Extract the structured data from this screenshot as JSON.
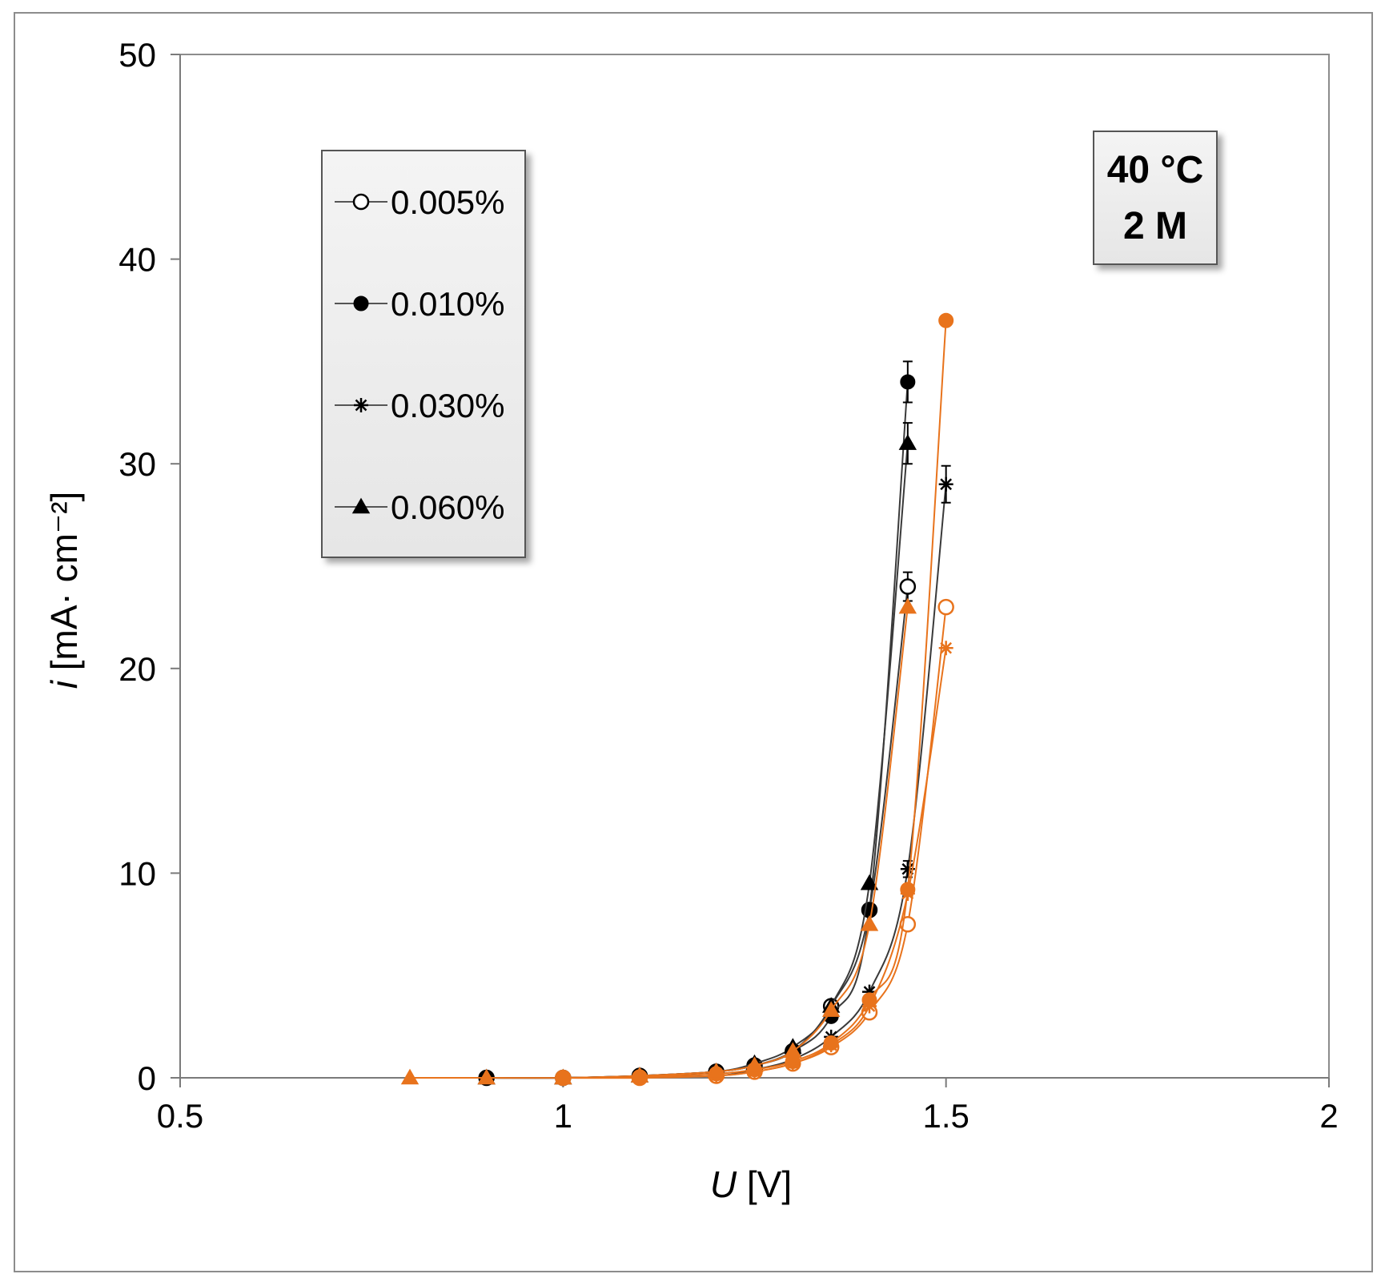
{
  "chart_data": {
    "type": "scatter",
    "xlabel": {
      "var": "U",
      "unit": " [V]"
    },
    "ylabel": {
      "var": "i",
      "unit": " [mA· cm⁻²]"
    },
    "xlim": [
      0.5,
      2
    ],
    "ylim": [
      0,
      50
    ],
    "xticks": [
      "0.5",
      "1",
      "1.5",
      "2"
    ],
    "yticks": [
      "0",
      "10",
      "20",
      "30",
      "40",
      "50"
    ],
    "grid": false,
    "legend_position": "top-left",
    "annotation": [
      "40 °C",
      "2 M"
    ],
    "colors": {
      "black_set": "#000000",
      "orange_set": "#E8731C"
    },
    "legend": [
      {
        "label": "0.005%",
        "marker": "open-circle"
      },
      {
        "label": "0.010%",
        "marker": "filled-circle"
      },
      {
        "label": "0.030%",
        "marker": "star"
      },
      {
        "label": "0.060%",
        "marker": "filled-triangle"
      }
    ],
    "series": [
      {
        "set": "black",
        "marker": "open-circle",
        "x": [
          0.9,
          1.0,
          1.1,
          1.2,
          1.25,
          1.3,
          1.35,
          1.4,
          1.45
        ],
        "y": [
          0,
          0,
          0.1,
          0.3,
          0.6,
          1.3,
          3.5,
          8.2,
          24.0
        ],
        "err": [
          0,
          0,
          0,
          0,
          0,
          0,
          0,
          0,
          0.7
        ]
      },
      {
        "set": "black",
        "marker": "filled-circle",
        "x": [
          0.9,
          1.0,
          1.1,
          1.2,
          1.25,
          1.3,
          1.35,
          1.4,
          1.45
        ],
        "y": [
          0,
          0,
          0.1,
          0.3,
          0.6,
          1.3,
          3.0,
          8.2,
          34.0
        ],
        "err": [
          0,
          0,
          0,
          0,
          0,
          0,
          0,
          0,
          1.0
        ]
      },
      {
        "set": "black",
        "marker": "star",
        "x": [
          0.9,
          1.0,
          1.1,
          1.2,
          1.25,
          1.3,
          1.35,
          1.4,
          1.45,
          1.5
        ],
        "y": [
          0,
          0,
          0.05,
          0.1,
          0.4,
          0.9,
          2.0,
          4.2,
          10.2,
          29.0
        ],
        "err": [
          0,
          0,
          0,
          0,
          0,
          0,
          0,
          0,
          0.4,
          0.9
        ]
      },
      {
        "set": "black",
        "marker": "filled-triangle",
        "x": [
          0.9,
          1.0,
          1.1,
          1.2,
          1.25,
          1.3,
          1.35,
          1.4,
          1.45
        ],
        "y": [
          0,
          0,
          0.1,
          0.3,
          0.7,
          1.5,
          3.5,
          9.5,
          31.0
        ],
        "err": [
          0,
          0,
          0,
          0,
          0,
          0,
          0,
          0,
          1.0
        ]
      },
      {
        "set": "orange",
        "marker": "open-circle",
        "x": [
          1.0,
          1.1,
          1.2,
          1.25,
          1.3,
          1.35,
          1.4,
          1.45,
          1.5
        ],
        "y": [
          0,
          0,
          0.1,
          0.3,
          0.7,
          1.5,
          3.2,
          7.5,
          23.0
        ],
        "err": [
          0,
          0,
          0,
          0,
          0,
          0,
          0,
          0,
          0
        ]
      },
      {
        "set": "orange",
        "marker": "filled-circle",
        "x": [
          1.0,
          1.1,
          1.2,
          1.25,
          1.3,
          1.35,
          1.4,
          1.45,
          1.5
        ],
        "y": [
          0,
          0.05,
          0.2,
          0.4,
          0.8,
          1.7,
          3.8,
          9.2,
          37.0
        ],
        "err": [
          0,
          0,
          0,
          0,
          0,
          0,
          0,
          0,
          0
        ]
      },
      {
        "set": "orange",
        "marker": "star",
        "x": [
          1.0,
          1.1,
          1.2,
          1.25,
          1.3,
          1.35,
          1.4,
          1.45,
          1.5
        ],
        "y": [
          0,
          0,
          0.1,
          0.3,
          0.7,
          1.6,
          3.5,
          9.0,
          21.0
        ],
        "err": [
          0,
          0,
          0,
          0,
          0,
          0,
          0,
          0,
          0
        ]
      },
      {
        "set": "orange",
        "marker": "filled-triangle",
        "x": [
          0.8,
          0.9,
          1.0,
          1.1,
          1.2,
          1.25,
          1.3,
          1.35,
          1.4,
          1.45
        ],
        "y": [
          0,
          0,
          0,
          0.1,
          0.3,
          0.6,
          1.3,
          3.3,
          7.5,
          23.0
        ],
        "err": [
          0,
          0,
          0,
          0,
          0,
          0,
          0,
          0,
          0,
          0
        ]
      }
    ]
  }
}
